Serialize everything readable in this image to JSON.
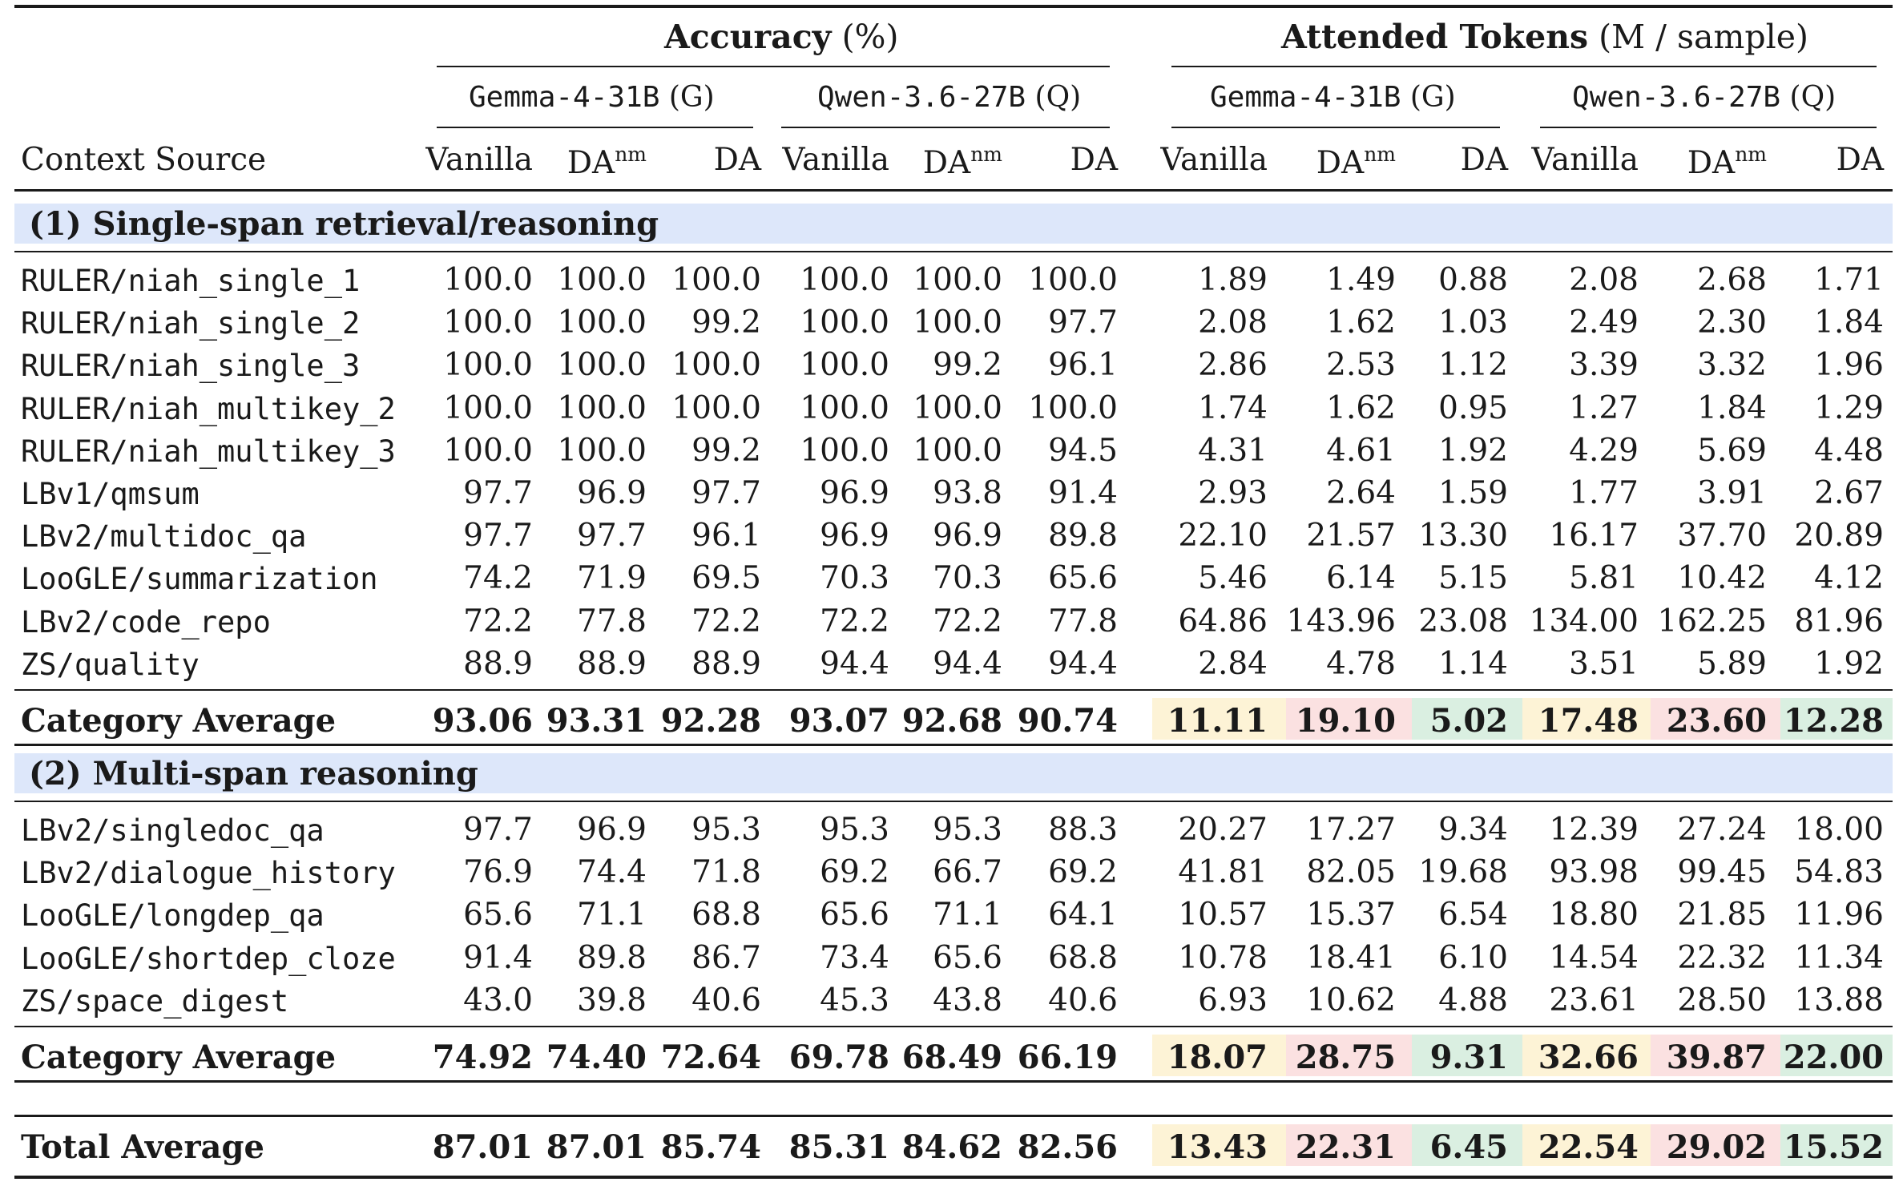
{
  "header": {
    "accuracy_title": "Accuracy",
    "accuracy_unit": "(%)",
    "tokens_title": "Attended Tokens",
    "tokens_unit": "(M / sample)",
    "model_g_name": "Gemma-4-31B",
    "model_g_tag": "(G)",
    "model_q_name": "Qwen-3.6-27B",
    "model_q_tag": "(Q)",
    "context_source": "Context Source",
    "col_vanilla": "Vanilla",
    "col_da": "DA",
    "col_nm_sup": "nm"
  },
  "sections": [
    {
      "title": "(1) Single-span retrieval/reasoning",
      "rows": [
        {
          "source": "RULER/niah_single_1",
          "acc_g": [
            "100.0",
            "100.0",
            "100.0"
          ],
          "acc_q": [
            "100.0",
            "100.0",
            "100.0"
          ],
          "tok_g": [
            "1.89",
            "1.49",
            "0.88"
          ],
          "tok_q": [
            "2.08",
            "2.68",
            "1.71"
          ]
        },
        {
          "source": "RULER/niah_single_2",
          "acc_g": [
            "100.0",
            "100.0",
            "99.2"
          ],
          "acc_q": [
            "100.0",
            "100.0",
            "97.7"
          ],
          "tok_g": [
            "2.08",
            "1.62",
            "1.03"
          ],
          "tok_q": [
            "2.49",
            "2.30",
            "1.84"
          ]
        },
        {
          "source": "RULER/niah_single_3",
          "acc_g": [
            "100.0",
            "100.0",
            "100.0"
          ],
          "acc_q": [
            "100.0",
            "99.2",
            "96.1"
          ],
          "tok_g": [
            "2.86",
            "2.53",
            "1.12"
          ],
          "tok_q": [
            "3.39",
            "3.32",
            "1.96"
          ]
        },
        {
          "source": "RULER/niah_multikey_2",
          "acc_g": [
            "100.0",
            "100.0",
            "100.0"
          ],
          "acc_q": [
            "100.0",
            "100.0",
            "100.0"
          ],
          "tok_g": [
            "1.74",
            "1.62",
            "0.95"
          ],
          "tok_q": [
            "1.27",
            "1.84",
            "1.29"
          ]
        },
        {
          "source": "RULER/niah_multikey_3",
          "acc_g": [
            "100.0",
            "100.0",
            "99.2"
          ],
          "acc_q": [
            "100.0",
            "100.0",
            "94.5"
          ],
          "tok_g": [
            "4.31",
            "4.61",
            "1.92"
          ],
          "tok_q": [
            "4.29",
            "5.69",
            "4.48"
          ]
        },
        {
          "source": "LBv1/qmsum",
          "acc_g": [
            "97.7",
            "96.9",
            "97.7"
          ],
          "acc_q": [
            "96.9",
            "93.8",
            "91.4"
          ],
          "tok_g": [
            "2.93",
            "2.64",
            "1.59"
          ],
          "tok_q": [
            "1.77",
            "3.91",
            "2.67"
          ]
        },
        {
          "source": "LBv2/multidoc_qa",
          "acc_g": [
            "97.7",
            "97.7",
            "96.1"
          ],
          "acc_q": [
            "96.9",
            "96.9",
            "89.8"
          ],
          "tok_g": [
            "22.10",
            "21.57",
            "13.30"
          ],
          "tok_q": [
            "16.17",
            "37.70",
            "20.89"
          ]
        },
        {
          "source": "LooGLE/summarization",
          "acc_g": [
            "74.2",
            "71.9",
            "69.5"
          ],
          "acc_q": [
            "70.3",
            "70.3",
            "65.6"
          ],
          "tok_g": [
            "5.46",
            "6.14",
            "5.15"
          ],
          "tok_q": [
            "5.81",
            "10.42",
            "4.12"
          ]
        },
        {
          "source": "LBv2/code_repo",
          "acc_g": [
            "72.2",
            "77.8",
            "72.2"
          ],
          "acc_q": [
            "72.2",
            "72.2",
            "77.8"
          ],
          "tok_g": [
            "64.86",
            "143.96",
            "23.08"
          ],
          "tok_q": [
            "134.00",
            "162.25",
            "81.96"
          ]
        },
        {
          "source": "ZS/quality",
          "acc_g": [
            "88.9",
            "88.9",
            "88.9"
          ],
          "acc_q": [
            "94.4",
            "94.4",
            "94.4"
          ],
          "tok_g": [
            "2.84",
            "4.78",
            "1.14"
          ],
          "tok_q": [
            "3.51",
            "5.89",
            "1.92"
          ]
        }
      ],
      "average": {
        "label": "Category Average",
        "acc_g": [
          "93.06",
          "93.31",
          "92.28"
        ],
        "acc_q": [
          "93.07",
          "92.68",
          "90.74"
        ],
        "tok_g": [
          "11.11",
          "19.10",
          "5.02"
        ],
        "tok_q": [
          "17.48",
          "23.60",
          "12.28"
        ]
      }
    },
    {
      "title": "(2) Multi-span reasoning",
      "rows": [
        {
          "source": "LBv2/singledoc_qa",
          "acc_g": [
            "97.7",
            "96.9",
            "95.3"
          ],
          "acc_q": [
            "95.3",
            "95.3",
            "88.3"
          ],
          "tok_g": [
            "20.27",
            "17.27",
            "9.34"
          ],
          "tok_q": [
            "12.39",
            "27.24",
            "18.00"
          ]
        },
        {
          "source": "LBv2/dialogue_history",
          "acc_g": [
            "76.9",
            "74.4",
            "71.8"
          ],
          "acc_q": [
            "69.2",
            "66.7",
            "69.2"
          ],
          "tok_g": [
            "41.81",
            "82.05",
            "19.68"
          ],
          "tok_q": [
            "93.98",
            "99.45",
            "54.83"
          ]
        },
        {
          "source": "LooGLE/longdep_qa",
          "acc_g": [
            "65.6",
            "71.1",
            "68.8"
          ],
          "acc_q": [
            "65.6",
            "71.1",
            "64.1"
          ],
          "tok_g": [
            "10.57",
            "15.37",
            "6.54"
          ],
          "tok_q": [
            "18.80",
            "21.85",
            "11.96"
          ]
        },
        {
          "source": "LooGLE/shortdep_cloze",
          "acc_g": [
            "91.4",
            "89.8",
            "86.7"
          ],
          "acc_q": [
            "73.4",
            "65.6",
            "68.8"
          ],
          "tok_g": [
            "10.78",
            "18.41",
            "6.10"
          ],
          "tok_q": [
            "14.54",
            "22.32",
            "11.34"
          ]
        },
        {
          "source": "ZS/space_digest",
          "acc_g": [
            "43.0",
            "39.8",
            "40.6"
          ],
          "acc_q": [
            "45.3",
            "43.8",
            "40.6"
          ],
          "tok_g": [
            "6.93",
            "10.62",
            "4.88"
          ],
          "tok_q": [
            "23.61",
            "28.50",
            "13.88"
          ]
        }
      ],
      "average": {
        "label": "Category Average",
        "acc_g": [
          "74.92",
          "74.40",
          "72.64"
        ],
        "acc_q": [
          "69.78",
          "68.49",
          "66.19"
        ],
        "tok_g": [
          "18.07",
          "28.75",
          "9.31"
        ],
        "tok_q": [
          "32.66",
          "39.87",
          "22.00"
        ]
      }
    }
  ],
  "total": {
    "label": "Total Average",
    "acc_g": [
      "87.01",
      "87.01",
      "85.74"
    ],
    "acc_q": [
      "85.31",
      "84.62",
      "82.56"
    ],
    "tok_g": [
      "13.43",
      "22.31",
      "6.45"
    ],
    "tok_q": [
      "22.54",
      "29.02",
      "15.52"
    ]
  },
  "colors": {
    "section_band": "#dde7fa",
    "vanilla_highlight": "#fdf3d6",
    "da_nm_highlight": "#fbe1e1",
    "da_highlight": "#daefe1"
  }
}
